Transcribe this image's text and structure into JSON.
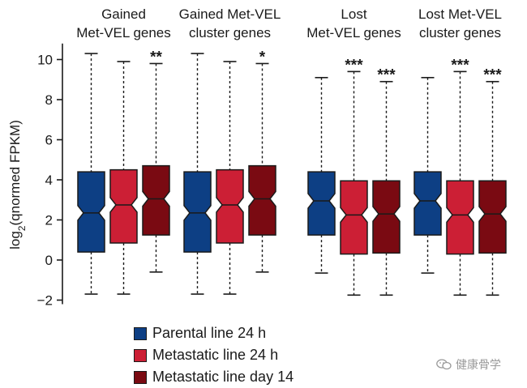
{
  "chart_data": {
    "type": "boxplot",
    "ylabel_prefix": "log",
    "ylabel_sub": "2",
    "ylabel_rest": "(qnormed FPKM)",
    "yticks": [
      10,
      8,
      6,
      4,
      2,
      0,
      -2
    ],
    "ytick_labels": [
      "10",
      "8",
      "6",
      "4",
      "2",
      "0",
      "−2"
    ],
    "ylim": [
      -2.2,
      10.8
    ],
    "series": [
      {
        "name": "Parental line 24 h",
        "color": "#0d3f84"
      },
      {
        "name": "Metastatic line 24 h",
        "color": "#cc1f35"
      },
      {
        "name": "Metastatic line day 14",
        "color": "#7a0a12"
      }
    ],
    "groups": [
      {
        "title_line1": "Gained",
        "title_line2": "Met-VEL genes",
        "boxes": [
          {
            "series": 0,
            "whisker_low": -1.7,
            "q1": 0.4,
            "median": 2.35,
            "q3": 4.4,
            "whisker_high": 10.3,
            "sig": ""
          },
          {
            "series": 1,
            "whisker_low": -1.7,
            "q1": 0.85,
            "median": 2.75,
            "q3": 4.5,
            "whisker_high": 9.9,
            "sig": ""
          },
          {
            "series": 2,
            "whisker_low": -0.6,
            "q1": 1.25,
            "median": 3.05,
            "q3": 4.7,
            "whisker_high": 9.8,
            "sig": "**"
          }
        ]
      },
      {
        "title_line1": "Gained Met-VEL",
        "title_line2": "cluster genes",
        "boxes": [
          {
            "series": 0,
            "whisker_low": -1.7,
            "q1": 0.4,
            "median": 2.35,
            "q3": 4.4,
            "whisker_high": 10.3,
            "sig": ""
          },
          {
            "series": 1,
            "whisker_low": -1.7,
            "q1": 0.85,
            "median": 2.75,
            "q3": 4.5,
            "whisker_high": 9.9,
            "sig": ""
          },
          {
            "series": 2,
            "whisker_low": -0.6,
            "q1": 1.25,
            "median": 3.05,
            "q3": 4.7,
            "whisker_high": 9.8,
            "sig": "*"
          }
        ]
      },
      {
        "title_line1": "Lost",
        "title_line2": "Met-VEL genes",
        "boxes": [
          {
            "series": 0,
            "whisker_low": -0.65,
            "q1": 1.25,
            "median": 2.95,
            "q3": 4.4,
            "whisker_high": 9.1,
            "sig": ""
          },
          {
            "series": 1,
            "whisker_low": -1.75,
            "q1": 0.3,
            "median": 2.25,
            "q3": 3.95,
            "whisker_high": 9.4,
            "sig": "***"
          },
          {
            "series": 2,
            "whisker_low": -1.75,
            "q1": 0.35,
            "median": 2.3,
            "q3": 3.95,
            "whisker_high": 8.9,
            "sig": "***"
          }
        ]
      },
      {
        "title_line1": "Lost Met-VEL",
        "title_line2": "cluster genes",
        "boxes": [
          {
            "series": 0,
            "whisker_low": -0.65,
            "q1": 1.25,
            "median": 2.95,
            "q3": 4.4,
            "whisker_high": 9.1,
            "sig": ""
          },
          {
            "series": 1,
            "whisker_low": -1.75,
            "q1": 0.3,
            "median": 2.25,
            "q3": 3.95,
            "whisker_high": 9.4,
            "sig": "***"
          },
          {
            "series": 2,
            "whisker_low": -1.75,
            "q1": 0.35,
            "median": 2.3,
            "q3": 3.95,
            "whisker_high": 8.9,
            "sig": "***"
          }
        ]
      }
    ]
  },
  "legend": [
    {
      "label": "Parental line 24 h",
      "color": "#0d3f84"
    },
    {
      "label": "Metastatic line 24 h",
      "color": "#cc1f35"
    },
    {
      "label": "Metastatic line day 14",
      "color": "#7a0a12"
    }
  ],
  "watermark": {
    "text": "健康骨学",
    "icon": "wechat-icon"
  }
}
